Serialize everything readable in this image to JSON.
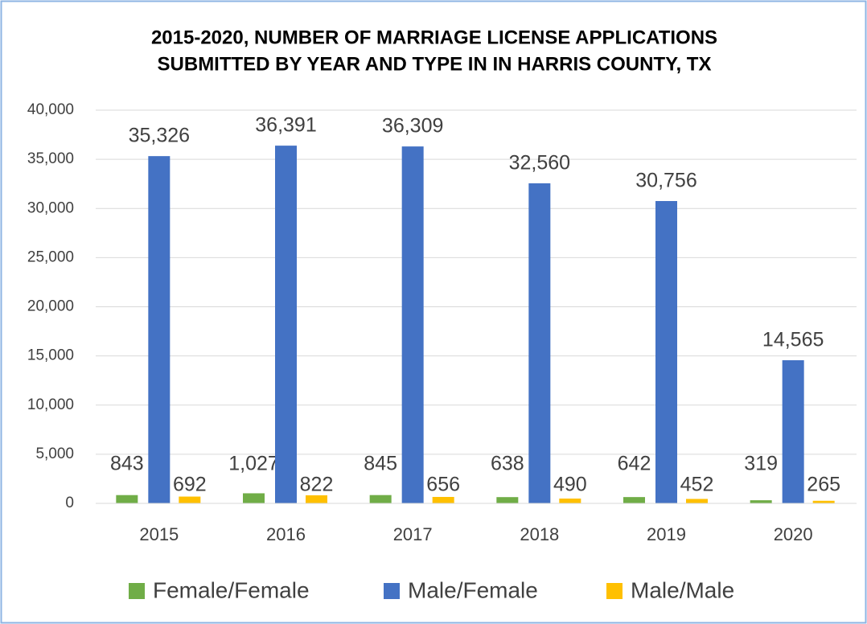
{
  "chart_data": {
    "type": "bar",
    "title": [
      "2015-2020, NUMBER OF MARRIAGE LICENSE APPLICATIONS",
      "SUBMITTED BY YEAR AND TYPE IN IN HARRIS COUNTY, TX"
    ],
    "categories": [
      "2015",
      "2016",
      "2017",
      "2018",
      "2019",
      "2020"
    ],
    "series": [
      {
        "name": "Female/Female",
        "color": "#70ad47",
        "values": [
          843,
          1027,
          845,
          638,
          642,
          319
        ],
        "value_labels": [
          "843",
          "1,027",
          "845",
          "638",
          "642",
          "319"
        ]
      },
      {
        "name": "Male/Female",
        "color": "#4472c4",
        "values": [
          35326,
          36391,
          36309,
          32560,
          30756,
          14565
        ],
        "value_labels": [
          "35,326",
          "36,391",
          "36,309",
          "32,560",
          "30,756",
          "14,565"
        ]
      },
      {
        "name": "Male/Male",
        "color": "#ffc000",
        "values": [
          692,
          822,
          656,
          490,
          452,
          265
        ],
        "value_labels": [
          "692",
          "822",
          "656",
          "490",
          "452",
          "265"
        ]
      }
    ],
    "ylim": [
      0,
      40000
    ],
    "yticks": [
      0,
      {
        "value": 5000,
        "label": "5,000"
      },
      {
        "value": 10000,
        "label": "10,000"
      },
      {
        "value": 15000,
        "label": "15,000"
      },
      {
        "value": 20000,
        "label": "20,000"
      },
      {
        "value": 25000,
        "label": "25,000"
      },
      {
        "value": 30000,
        "label": "30,000"
      },
      {
        "value": 35000,
        "label": "35,000"
      },
      {
        "value": 40000,
        "label": "40,000"
      }
    ],
    "grid": true,
    "legend": "bottom"
  }
}
